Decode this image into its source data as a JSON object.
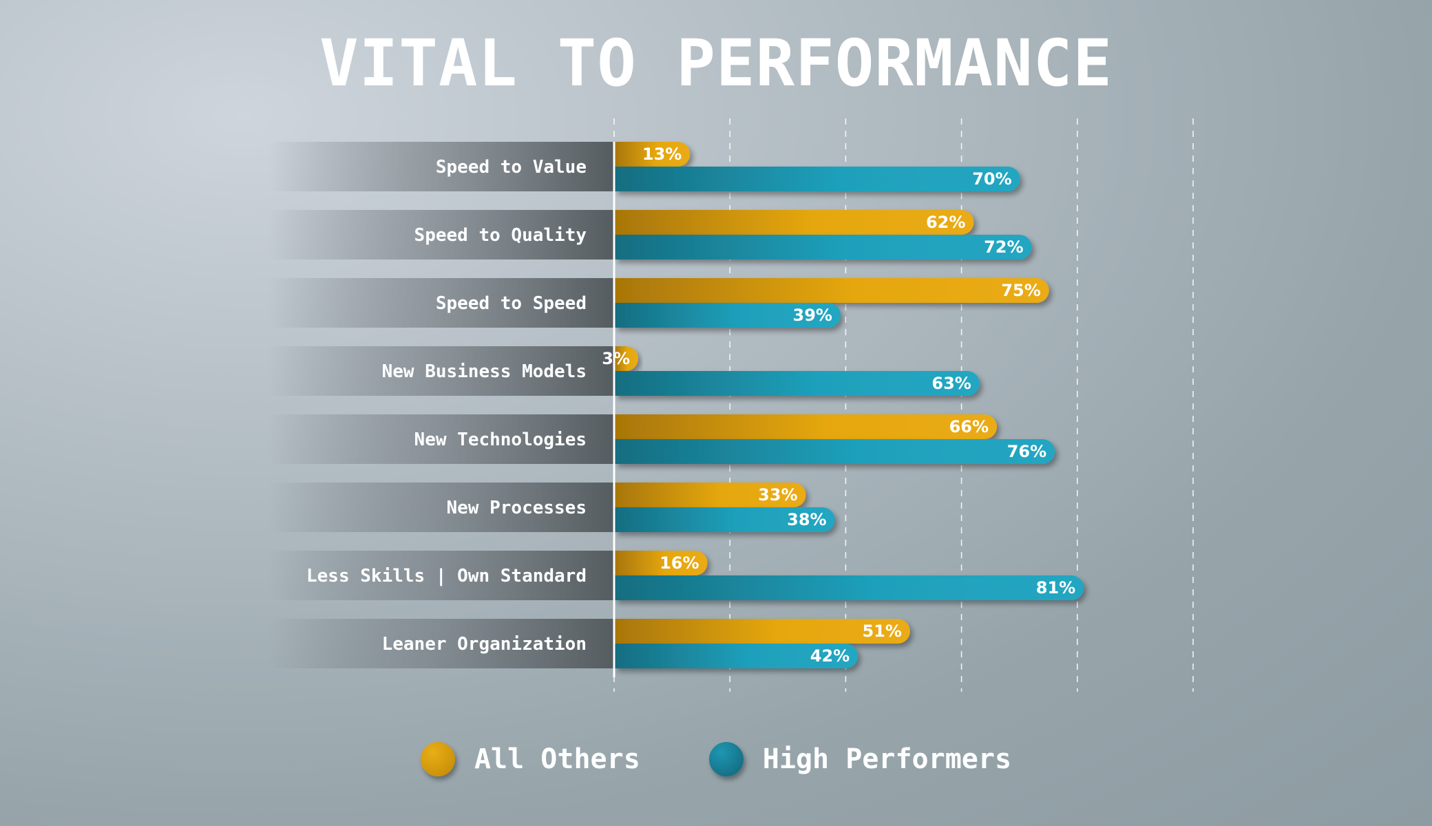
{
  "chart_data": {
    "type": "bar",
    "orientation": "horizontal",
    "title": "VITAL TO PERFORMANCE",
    "categories": [
      "Speed to Value",
      "Speed to Quality",
      "Speed to Speed",
      "New Business Models",
      "New Technologies",
      "New Processes",
      "Less Skills | Own Standard",
      "Leaner Organization"
    ],
    "series": [
      {
        "name": "All Others",
        "color": "#e5a711",
        "color_dark": "#a87606",
        "values": [
          13,
          62,
          75,
          3,
          66,
          33,
          16,
          51
        ],
        "labels": [
          "13%",
          "62%",
          "75%",
          "3%",
          "66%",
          "33%",
          "16%",
          "51%"
        ]
      },
      {
        "name": "High Performers",
        "color": "#1fa0bb",
        "color_dark": "#166d80",
        "values": [
          70,
          72,
          39,
          63,
          76,
          38,
          81,
          42
        ],
        "labels": [
          "70%",
          "72%",
          "39%",
          "63%",
          "76%",
          "38%",
          "81%",
          "42%"
        ]
      }
    ],
    "xlim": [
      0,
      100
    ],
    "gridlines": [
      0,
      20,
      40,
      60,
      80,
      100
    ],
    "grid": true,
    "legend": "bottom-center"
  }
}
